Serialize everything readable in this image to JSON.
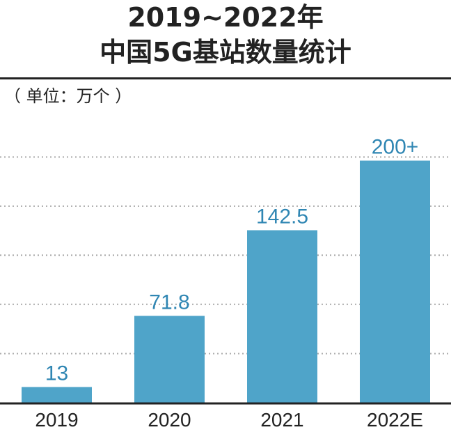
{
  "title": "2019~2022年",
  "subtitle": "中国5G基站数量统计",
  "unit_label": "（ 单位：万个 ）",
  "colors": {
    "bar": "#4fa4c9",
    "value_label": "#2f86b3",
    "axis": "#222222",
    "grid": "#aaaaaa"
  },
  "chart_data": {
    "type": "bar",
    "title": "2019~2022年 中国5G基站数量统计",
    "unit": "万个",
    "categories": [
      "2019",
      "2020",
      "2021",
      "2022E"
    ],
    "values": [
      13,
      71.8,
      142.5,
      200
    ],
    "value_labels": [
      "13",
      "71.8",
      "142.5",
      "200+"
    ],
    "ylim": [
      0,
      236
    ],
    "grid": true,
    "gridlines": [
      40.6,
      81.3,
      121.9,
      162.4,
      203
    ],
    "gridline_style": "dotted"
  }
}
